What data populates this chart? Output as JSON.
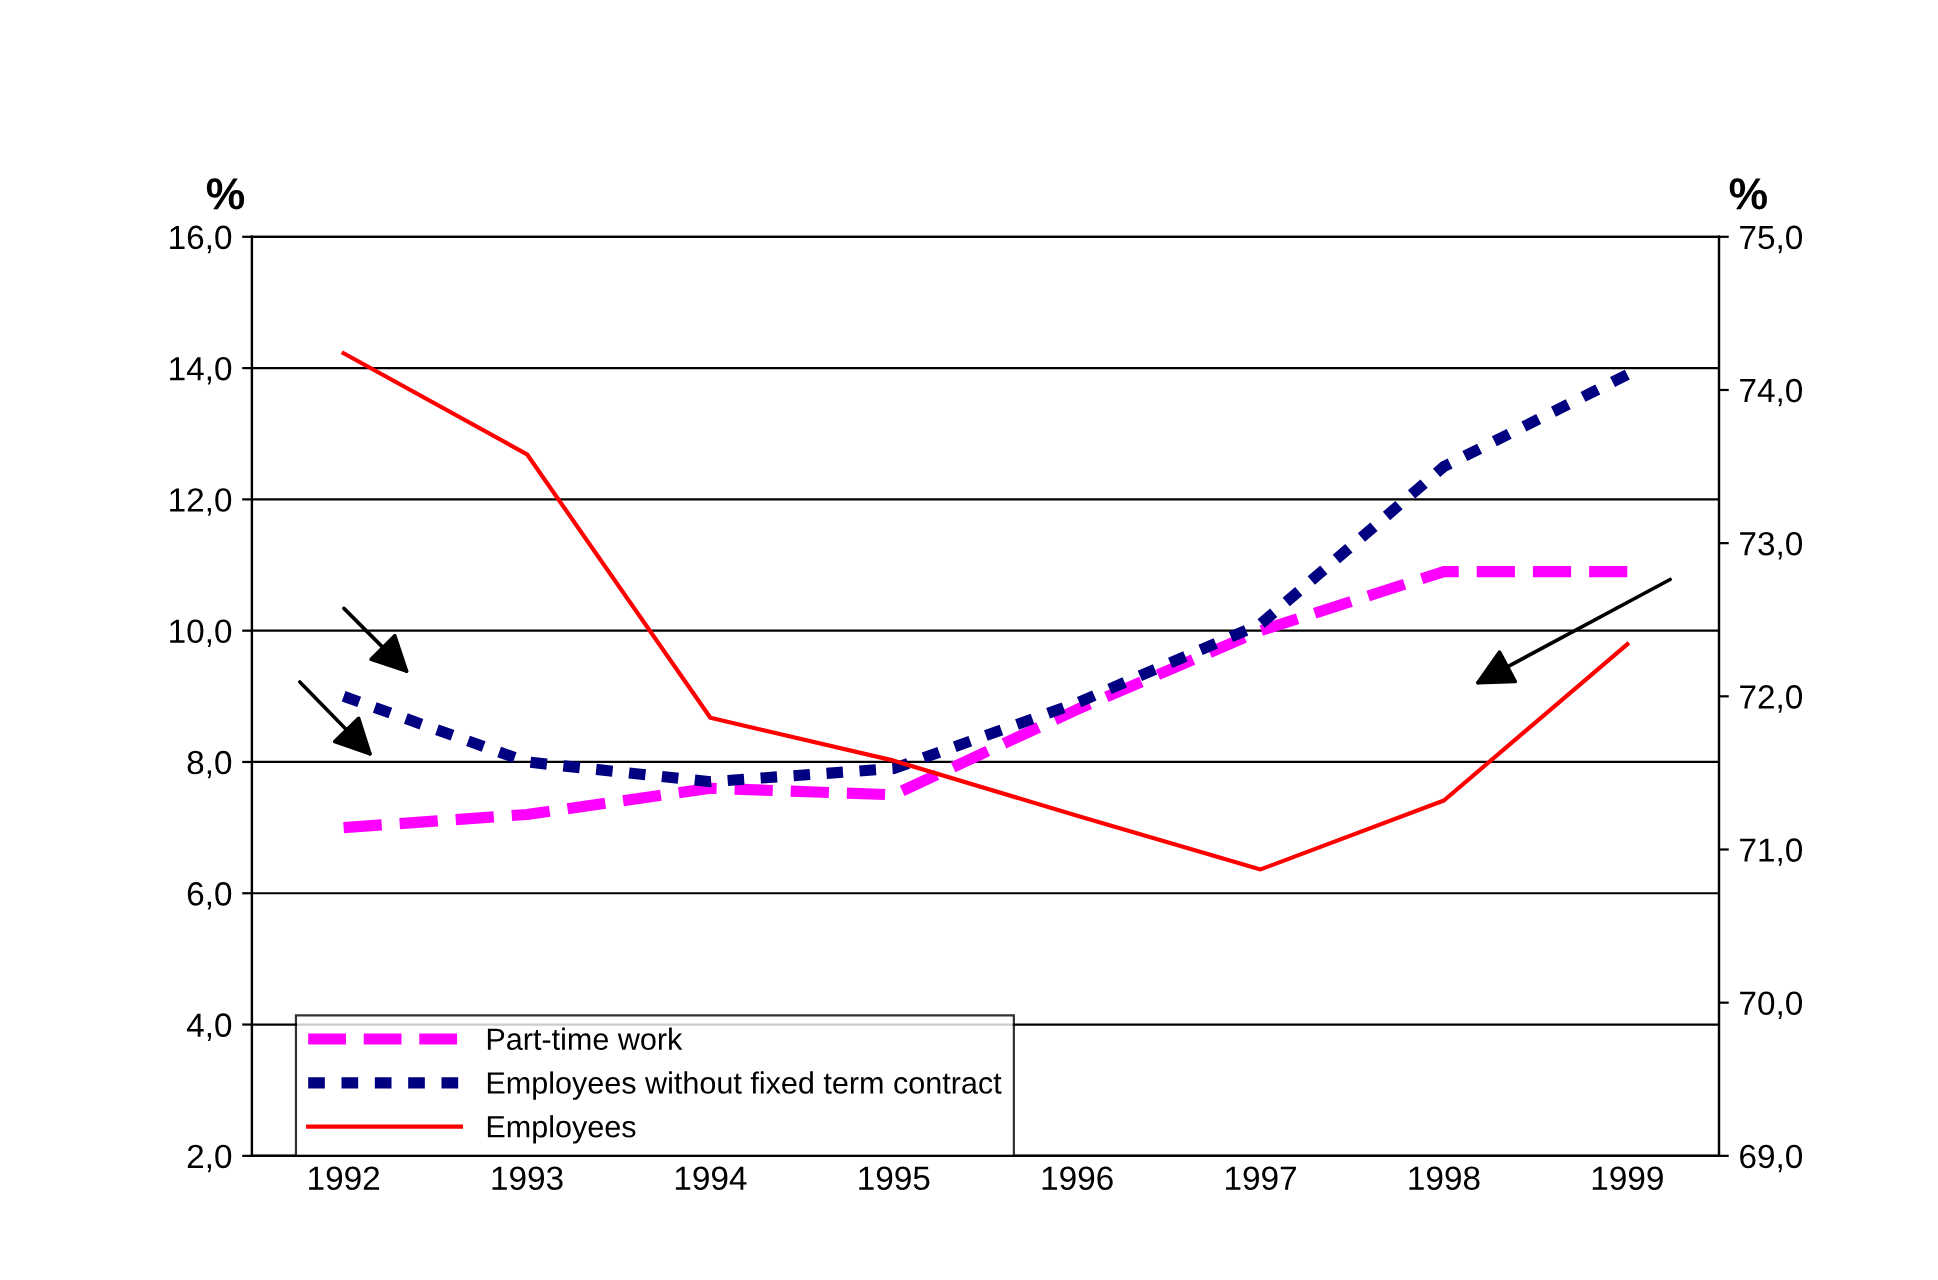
{
  "chart_data": {
    "type": "line",
    "ylabel": "%",
    "y2label": "%",
    "categories": [
      "1992",
      "1993",
      "1994",
      "1995",
      "1996",
      "1997",
      "1998",
      "1999"
    ],
    "series": [
      {
        "name": "Part-time work",
        "color": "#ff00ff",
        "line_style": "dashed",
        "values": [
          7.0,
          7.2,
          7.6,
          7.5,
          8.8,
          10.0,
          10.9,
          10.9
        ]
      },
      {
        "name": "Employees without fixed term contract",
        "color": "#000080",
        "line_style": "dotted",
        "values": [
          9.0,
          8.0,
          7.7,
          7.9,
          8.9,
          10.1,
          12.5,
          13.9
        ]
      },
      {
        "name": "Employees",
        "color": "#ff0000",
        "line_style": "solid",
        "axis": "y2",
        "values": [
          74.24,
          73.58,
          71.86,
          71.58,
          71.22,
          70.87,
          71.32,
          72.34
        ]
      }
    ],
    "ylim": [
      2,
      16
    ],
    "yticks": [
      {
        "value": 2,
        "label": "2,0"
      },
      {
        "value": 4,
        "label": "4,0"
      },
      {
        "value": 6,
        "label": "6,0"
      },
      {
        "value": 8,
        "label": "8,0"
      },
      {
        "value": 10,
        "label": "10,0"
      },
      {
        "value": 12,
        "label": "12,0"
      },
      {
        "value": 14,
        "label": "14,0"
      },
      {
        "value": 16,
        "label": "16,0"
      }
    ],
    "y2lim": [
      69,
      75
    ],
    "y2ticks": [
      {
        "value": 69,
        "label": "69,0"
      },
      {
        "value": 70,
        "label": "70,0"
      },
      {
        "value": 71,
        "label": "71,0"
      },
      {
        "value": 72,
        "label": "72,0"
      },
      {
        "value": 73,
        "label": "73,0"
      },
      {
        "value": 74,
        "label": "74,0"
      },
      {
        "value": 75,
        "label": "75,0"
      }
    ],
    "grid": "y",
    "legend": "bottom left",
    "marker": "none"
  }
}
